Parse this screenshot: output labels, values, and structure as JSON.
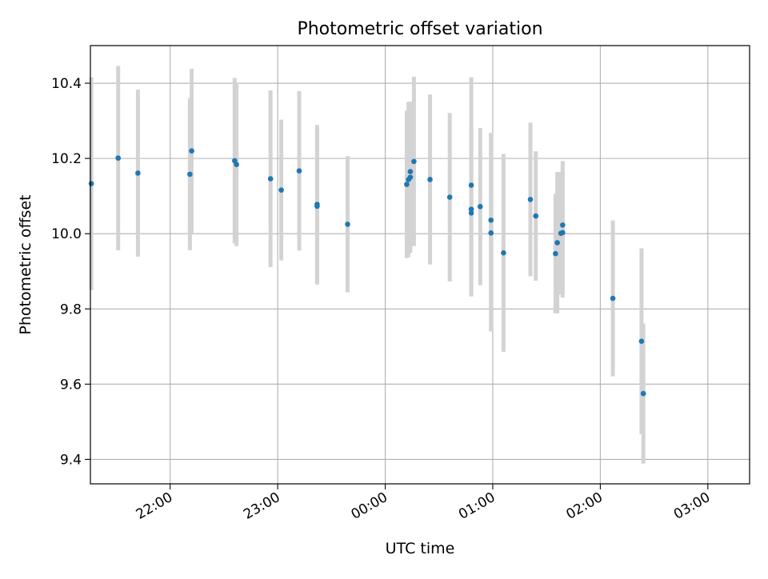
{
  "chart_data": {
    "type": "scatter",
    "title": "Photometric offset variation",
    "xlabel": "UTC time",
    "ylabel": "Photometric offset",
    "x_ticks": [
      "22:00",
      "23:00",
      "00:00",
      "01:00",
      "02:00",
      "03:00"
    ],
    "x_ticks_minutes": [
      1320,
      1380,
      1440,
      1500,
      1560,
      1620
    ],
    "xlim_minutes": [
      1275.5,
      1643.3
    ],
    "ylim": [
      9.335,
      10.5
    ],
    "y_ticks": [
      9.4,
      9.6,
      9.8,
      10.0,
      10.2,
      10.4
    ],
    "y_tick_labels": [
      "9.4",
      "9.6",
      "9.8",
      "10.0",
      "10.2",
      "10.4"
    ],
    "grid": true,
    "legend": "none",
    "point_color": "#1f77b4",
    "errorbar_color": "#d3d3d3",
    "points": [
      {
        "t": "21:16",
        "y": 10.133,
        "err": 0.283
      },
      {
        "t": "21:31",
        "y": 10.201,
        "err": 0.245
      },
      {
        "t": "21:42",
        "y": 10.161,
        "err": 0.222
      },
      {
        "t": "22:11",
        "y": 10.158,
        "err": 0.202
      },
      {
        "t": "22:12",
        "y": 10.22,
        "err": 0.218
      },
      {
        "t": "22:36",
        "y": 10.194,
        "err": 0.22
      },
      {
        "t": "22:37",
        "y": 10.184,
        "err": 0.217
      },
      {
        "t": "22:56",
        "y": 10.146,
        "err": 0.235
      },
      {
        "t": "23:02",
        "y": 10.116,
        "err": 0.187
      },
      {
        "t": "23:12",
        "y": 10.167,
        "err": 0.212
      },
      {
        "t": "23:22",
        "y": 10.078,
        "err": 0.211
      },
      {
        "t": "23:22",
        "y": 10.073,
        "err": 0.208
      },
      {
        "t": "23:39",
        "y": 10.025,
        "err": 0.181
      },
      {
        "t": "00:12",
        "y": 10.131,
        "err": 0.196
      },
      {
        "t": "00:13",
        "y": 10.144,
        "err": 0.206
      },
      {
        "t": "00:14",
        "y": 10.15,
        "err": 0.201
      },
      {
        "t": "00:14",
        "y": 10.165,
        "err": 0.185
      },
      {
        "t": "00:16",
        "y": 10.192,
        "err": 0.225
      },
      {
        "t": "00:25",
        "y": 10.144,
        "err": 0.226
      },
      {
        "t": "00:36",
        "y": 10.097,
        "err": 0.224
      },
      {
        "t": "00:48",
        "y": 10.065,
        "err": 0.225
      },
      {
        "t": "00:48",
        "y": 10.055,
        "err": 0.222
      },
      {
        "t": "00:48",
        "y": 10.129,
        "err": 0.287
      },
      {
        "t": "00:53",
        "y": 10.072,
        "err": 0.209
      },
      {
        "t": "00:59",
        "y": 10.036,
        "err": 0.232
      },
      {
        "t": "00:59",
        "y": 10.002,
        "err": 0.262
      },
      {
        "t": "01:06",
        "y": 9.949,
        "err": 0.263
      },
      {
        "t": "01:21",
        "y": 10.091,
        "err": 0.204
      },
      {
        "t": "01:24",
        "y": 10.047,
        "err": 0.172
      },
      {
        "t": "01:35",
        "y": 9.947,
        "err": 0.159
      },
      {
        "t": "01:36",
        "y": 9.976,
        "err": 0.188
      },
      {
        "t": "01:38",
        "y": 10.001,
        "err": 0.163
      },
      {
        "t": "01:39",
        "y": 10.023,
        "err": 0.17
      },
      {
        "t": "01:39",
        "y": 10.003,
        "err": 0.173
      },
      {
        "t": "02:07",
        "y": 9.828,
        "err": 0.207
      },
      {
        "t": "02:23",
        "y": 9.714,
        "err": 0.247
      },
      {
        "t": "02:24",
        "y": 9.575,
        "err": 0.186
      }
    ]
  }
}
